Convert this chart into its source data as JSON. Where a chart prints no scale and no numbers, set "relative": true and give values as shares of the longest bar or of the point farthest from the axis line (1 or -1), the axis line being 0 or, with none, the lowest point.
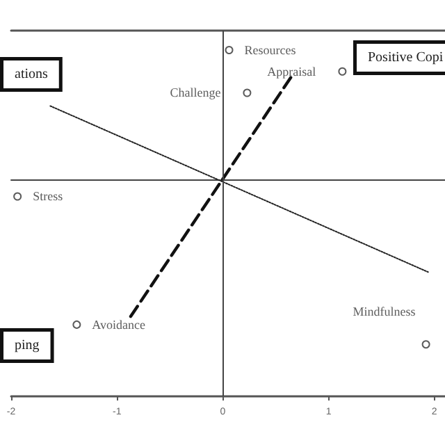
{
  "chart_data": {
    "type": "scatter",
    "relative": true,
    "series": [
      {
        "name": "Resources",
        "color": "#333333",
        "x": [
          0.06
        ],
        "values": [
          0.79
        ]
      },
      {
        "name": "Appraisal",
        "color": "#333333",
        "x": [
          1.13
        ],
        "values": [
          0.66
        ]
      },
      {
        "name": "Challenge",
        "color": "#333333",
        "x": [
          0.23
        ],
        "values": [
          0.53
        ]
      },
      {
        "name": "Stress",
        "color": "#333333",
        "x": [
          -1.94
        ],
        "values": [
          -0.1
        ]
      },
      {
        "name": "Avoidance",
        "color": "#333333",
        "x": [
          -1.38
        ],
        "values": [
          -0.88
        ]
      },
      {
        "name": "Mindfulness",
        "color": "#333333",
        "x": [
          1.92
        ],
        "values": [
          -1.0
        ]
      },
      {
        "type": "line",
        "color": "#111111",
        "line_style": "dashed",
        "marker": "none",
        "x": [
          -0.87,
          0.66
        ],
        "values": [
          -0.83,
          0.64
        ]
      },
      {
        "type": "line",
        "color": "#222222",
        "line_style": "dotted",
        "marker": "none",
        "x": [
          -1.63,
          1.94
        ],
        "values": [
          0.45,
          -0.56
        ]
      }
    ],
    "annotations": [
      "ations",
      "Positive Copi",
      "ping"
    ],
    "ref_lines": [
      {
        "axis": "x",
        "value": 0
      }
    ],
    "xlim": [
      -2,
      2.1
    ],
    "xticks": [
      -2,
      -1,
      0,
      1,
      2
    ],
    "tick_labels": "x",
    "grid": false,
    "legend": false,
    "marker": "circle"
  }
}
